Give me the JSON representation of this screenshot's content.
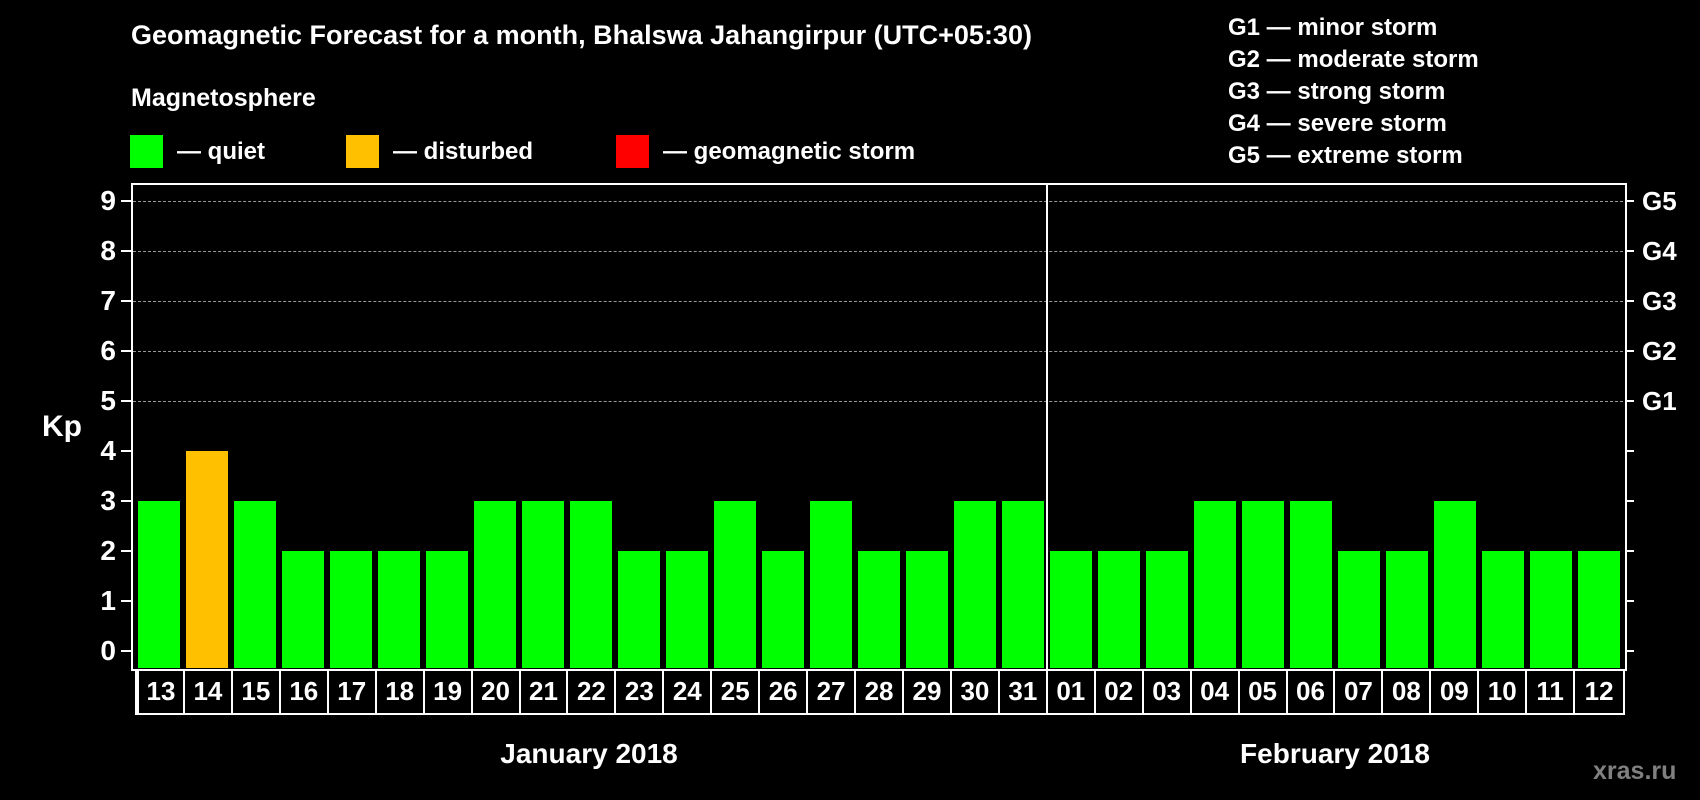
{
  "header": {
    "title": "Geomagnetic Forecast for a month, Bhalswa Jahangirpur (UTC+05:30)",
    "subtitle": "Magnetosphere"
  },
  "legend": {
    "items": [
      {
        "label": "— quiet",
        "color": "#00ff00"
      },
      {
        "label": "— disturbed",
        "color": "#ffc000"
      },
      {
        "label": "— geomagnetic storm",
        "color": "#ff0000"
      }
    ]
  },
  "storm_scale": [
    "G1 — minor storm",
    "G2 — moderate storm",
    "G3 — strong storm",
    "G4 — severe storm",
    "G5 — extreme storm"
  ],
  "axis": {
    "ylabel": "Kp",
    "yticks": [
      "0",
      "1",
      "2",
      "3",
      "4",
      "5",
      "6",
      "7",
      "8",
      "9"
    ],
    "right_labels": [
      {
        "kp": 5,
        "label": "G1"
      },
      {
        "kp": 6,
        "label": "G2"
      },
      {
        "kp": 7,
        "label": "G3"
      },
      {
        "kp": 8,
        "label": "G4"
      },
      {
        "kp": 9,
        "label": "G5"
      }
    ]
  },
  "months": [
    {
      "label": "January 2018"
    },
    {
      "label": "February 2018"
    }
  ],
  "watermark": "xras.ru",
  "chart_data": {
    "type": "bar",
    "title": "Geomagnetic Forecast for a month, Bhalswa Jahangirpur (UTC+05:30)",
    "xlabel": "",
    "ylabel": "Kp",
    "ylim": [
      0,
      9
    ],
    "grid": true,
    "legend_position": "top",
    "categories": [
      "13",
      "14",
      "15",
      "16",
      "17",
      "18",
      "19",
      "20",
      "21",
      "22",
      "23",
      "24",
      "25",
      "26",
      "27",
      "28",
      "29",
      "30",
      "31",
      "01",
      "02",
      "03",
      "04",
      "05",
      "06",
      "07",
      "08",
      "09",
      "10",
      "11",
      "12"
    ],
    "months": [
      "January 2018",
      "February 2018"
    ],
    "values": [
      3,
      4,
      3,
      2,
      2,
      2,
      2,
      3,
      3,
      3,
      2,
      2,
      3,
      2,
      3,
      2,
      2,
      3,
      3,
      2,
      2,
      2,
      3,
      3,
      3,
      2,
      2,
      3,
      2,
      2,
      2
    ],
    "status": [
      "quiet",
      "disturbed",
      "quiet",
      "quiet",
      "quiet",
      "quiet",
      "quiet",
      "quiet",
      "quiet",
      "quiet",
      "quiet",
      "quiet",
      "quiet",
      "quiet",
      "quiet",
      "quiet",
      "quiet",
      "quiet",
      "quiet",
      "quiet",
      "quiet",
      "quiet",
      "quiet",
      "quiet",
      "quiet",
      "quiet",
      "quiet",
      "quiet",
      "quiet",
      "quiet",
      "quiet"
    ],
    "colors": {
      "quiet": "#00ff00",
      "disturbed": "#ffc000",
      "geomagnetic storm": "#ff0000"
    },
    "secondary_axis": {
      "5": "G1",
      "6": "G2",
      "7": "G3",
      "8": "G4",
      "9": "G5"
    }
  }
}
